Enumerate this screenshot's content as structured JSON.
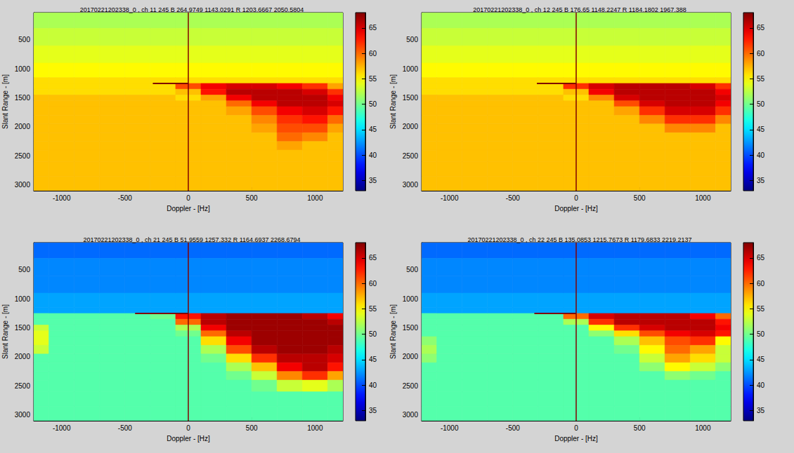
{
  "chart_data": [
    {
      "type": "heatmap",
      "title": "20170221202338_0 , ch 11 245 B 264.9749 1143.0291 R 1203.6667 2050.5804",
      "x_label": "Doppler - [Hz]",
      "y_label": "Slant Range - [m]",
      "xlim": [
        -1220,
        1220
      ],
      "xticks": [
        -1000,
        -500,
        0,
        500,
        1000
      ],
      "ylim": [
        30,
        3100
      ],
      "yticks": [
        500,
        1000,
        1500,
        2000,
        2500,
        3000
      ],
      "x_edges": [
        -1220,
        -1100,
        -900,
        -700,
        -500,
        -300,
        -100,
        100,
        300,
        500,
        700,
        900,
        1100,
        1220
      ],
      "y_edges": [
        30,
        300,
        600,
        900,
        1150,
        1250,
        1350,
        1450,
        1550,
        1650,
        1800,
        1950,
        2100,
        2250,
        2400,
        2600,
        2850,
        3100
      ],
      "z": [
        [
          52,
          52,
          52,
          52,
          52,
          52,
          52,
          52,
          52,
          52,
          52,
          52,
          52
        ],
        [
          53,
          53,
          53,
          53,
          53,
          53,
          53,
          53,
          53,
          53,
          53,
          53,
          53
        ],
        [
          54,
          54,
          54,
          54,
          54,
          54,
          54,
          54,
          54,
          54,
          54,
          54,
          54
        ],
        [
          55,
          55,
          55,
          55,
          55,
          55,
          55,
          55,
          55,
          55,
          55,
          55,
          55
        ],
        [
          56,
          56,
          56,
          56,
          56,
          56,
          56,
          56,
          56,
          56,
          56,
          56,
          56
        ],
        [
          56,
          56,
          56,
          56,
          56,
          56,
          61,
          64,
          65,
          65,
          64,
          62,
          58
        ],
        [
          56,
          56,
          56,
          56,
          56,
          56,
          57,
          63,
          66,
          66,
          66,
          65,
          62
        ],
        [
          57,
          57,
          57,
          57,
          57,
          57,
          56,
          58,
          64,
          66,
          66,
          66,
          64
        ],
        [
          57,
          57,
          57,
          57,
          57,
          57,
          57,
          57,
          60,
          64,
          66,
          66,
          65
        ],
        [
          57,
          57,
          57,
          57,
          57,
          57,
          57,
          57,
          58,
          61,
          64,
          65,
          63
        ],
        [
          57,
          57,
          57,
          57,
          57,
          57,
          57,
          57,
          57,
          59,
          62,
          63,
          60
        ],
        [
          57,
          57,
          57,
          57,
          57,
          57,
          57,
          57,
          57,
          58,
          61,
          61,
          58
        ],
        [
          57,
          57,
          57,
          57,
          57,
          57,
          57,
          57,
          57,
          57,
          60,
          59,
          57
        ],
        [
          57,
          57,
          57,
          57,
          57,
          57,
          57,
          57,
          57,
          57,
          58,
          57,
          57
        ],
        [
          57,
          57,
          57,
          57,
          57,
          57,
          57,
          57,
          57,
          57,
          57,
          57,
          57
        ],
        [
          57,
          57,
          57,
          57,
          57,
          57,
          57,
          57,
          57,
          57,
          57,
          57,
          57
        ],
        [
          57,
          57,
          57,
          57,
          57,
          57,
          57,
          57,
          57,
          57,
          57,
          57,
          57
        ]
      ],
      "colorbar": {
        "range": [
          33,
          68
        ],
        "ticks": [
          35,
          40,
          45,
          50,
          55,
          60,
          65
        ]
      },
      "zero_doppler_line": 0,
      "streak": {
        "doppler": [
          -280,
          0
        ],
        "range": 1250
      }
    },
    {
      "type": "heatmap",
      "title": "20170221202338_0 , ch 12 245 B 176.65 1148.2247 R 1184.1802 1967.388",
      "x_label": "Doppler - [Hz]",
      "y_label": "Slant Range - [m]",
      "xlim": [
        -1220,
        1220
      ],
      "xticks": [
        -1000,
        -500,
        0,
        500,
        1000
      ],
      "ylim": [
        30,
        3100
      ],
      "yticks": [
        500,
        1000,
        1500,
        2000,
        2500,
        3000
      ],
      "x_edges": [
        -1220,
        -1100,
        -900,
        -700,
        -500,
        -300,
        -100,
        100,
        300,
        500,
        700,
        900,
        1100,
        1220
      ],
      "y_edges": [
        30,
        300,
        600,
        900,
        1150,
        1250,
        1350,
        1450,
        1550,
        1650,
        1800,
        1950,
        2100,
        2250,
        2400,
        2600,
        2850,
        3100
      ],
      "z": [
        [
          52,
          52,
          52,
          52,
          52,
          52,
          52,
          52,
          52,
          52,
          52,
          52,
          52
        ],
        [
          53,
          53,
          53,
          53,
          53,
          53,
          53,
          53,
          53,
          53,
          53,
          53,
          53
        ],
        [
          54,
          54,
          54,
          54,
          54,
          54,
          54,
          54,
          54,
          54,
          54,
          54,
          54
        ],
        [
          55,
          55,
          55,
          55,
          55,
          55,
          55,
          55,
          55,
          55,
          55,
          55,
          55
        ],
        [
          56,
          56,
          56,
          56,
          56,
          56,
          56,
          56,
          56,
          56,
          56,
          56,
          56
        ],
        [
          56,
          56,
          56,
          56,
          56,
          56,
          62,
          65,
          66,
          66,
          66,
          65,
          62
        ],
        [
          56,
          56,
          56,
          56,
          56,
          56,
          57,
          64,
          66,
          66,
          66,
          66,
          64
        ],
        [
          57,
          57,
          57,
          57,
          57,
          57,
          56,
          59,
          65,
          66,
          66,
          66,
          65
        ],
        [
          57,
          57,
          57,
          57,
          57,
          57,
          57,
          57,
          61,
          65,
          66,
          66,
          64
        ],
        [
          57,
          57,
          57,
          57,
          57,
          57,
          57,
          57,
          58,
          62,
          65,
          65,
          62
        ],
        [
          57,
          57,
          57,
          57,
          57,
          57,
          57,
          57,
          57,
          59,
          62,
          62,
          59
        ],
        [
          57,
          57,
          57,
          57,
          57,
          57,
          57,
          57,
          57,
          57,
          59,
          59,
          57
        ],
        [
          57,
          57,
          57,
          57,
          57,
          57,
          57,
          57,
          57,
          57,
          57,
          57,
          57
        ],
        [
          57,
          57,
          57,
          57,
          57,
          57,
          57,
          57,
          57,
          57,
          57,
          57,
          57
        ],
        [
          57,
          57,
          57,
          57,
          57,
          57,
          57,
          57,
          57,
          57,
          57,
          57,
          57
        ],
        [
          57,
          57,
          57,
          57,
          57,
          57,
          57,
          57,
          57,
          57,
          57,
          57,
          57
        ],
        [
          57,
          57,
          57,
          57,
          57,
          57,
          57,
          57,
          57,
          57,
          57,
          57,
          57
        ]
      ],
      "colorbar": {
        "range": [
          33,
          68
        ],
        "ticks": [
          35,
          40,
          45,
          50,
          55,
          60,
          65
        ]
      },
      "zero_doppler_line": 0,
      "streak": {
        "doppler": [
          -310,
          0
        ],
        "range": 1250
      }
    },
    {
      "type": "heatmap",
      "title": "20170221202338_0 , ch 21 245 B 51.9559 1257.332 R 1164.6937 2268.6794",
      "x_label": "Doppler - [Hz]",
      "y_label": "Slant Range - [m]",
      "xlim": [
        -1220,
        1220
      ],
      "xticks": [
        -1000,
        -500,
        0,
        500,
        1000
      ],
      "ylim": [
        30,
        3100
      ],
      "yticks": [
        500,
        1000,
        1500,
        2000,
        2500,
        3000
      ],
      "x_edges": [
        -1220,
        -1100,
        -900,
        -700,
        -500,
        -300,
        -100,
        100,
        300,
        500,
        700,
        900,
        1100,
        1220
      ],
      "y_edges": [
        30,
        300,
        600,
        900,
        1150,
        1250,
        1350,
        1450,
        1550,
        1650,
        1800,
        1950,
        2100,
        2250,
        2400,
        2600,
        2850,
        3100
      ],
      "z": [
        [
          41,
          41,
          41,
          41,
          41,
          41,
          41,
          41,
          41,
          41,
          41,
          41,
          41
        ],
        [
          42,
          42,
          42,
          42,
          42,
          42,
          42,
          42,
          42,
          42,
          42,
          42,
          42
        ],
        [
          42,
          42,
          42,
          42,
          42,
          42,
          42,
          42,
          42,
          42,
          42,
          42,
          42
        ],
        [
          43,
          43,
          43,
          43,
          43,
          43,
          43,
          43,
          43,
          43,
          43,
          43,
          43
        ],
        [
          43,
          43,
          43,
          43,
          43,
          43,
          43,
          43,
          43,
          43,
          43,
          43,
          43
        ],
        [
          49,
          49,
          49,
          49,
          49,
          50,
          63,
          66,
          67,
          67,
          67,
          66,
          64
        ],
        [
          49,
          49,
          49,
          49,
          49,
          49,
          60,
          66,
          67,
          67,
          67,
          67,
          66
        ],
        [
          53,
          49,
          49,
          49,
          49,
          49,
          52,
          64,
          67,
          67,
          67,
          67,
          67
        ],
        [
          54,
          49,
          49,
          49,
          49,
          49,
          50,
          60,
          66,
          67,
          67,
          67,
          67
        ],
        [
          54,
          49,
          49,
          49,
          49,
          49,
          49,
          56,
          64,
          67,
          67,
          67,
          67
        ],
        [
          53,
          49,
          49,
          49,
          49,
          49,
          49,
          52,
          61,
          66,
          67,
          67,
          66
        ],
        [
          49,
          49,
          49,
          49,
          49,
          49,
          49,
          50,
          56,
          62,
          66,
          66,
          65
        ],
        [
          49,
          49,
          49,
          49,
          49,
          49,
          49,
          49,
          52,
          57,
          64,
          66,
          63
        ],
        [
          49,
          49,
          49,
          49,
          49,
          49,
          49,
          49,
          50,
          53,
          59,
          62,
          58
        ],
        [
          49,
          49,
          49,
          49,
          49,
          49,
          49,
          49,
          49,
          50,
          53,
          54,
          52
        ],
        [
          49,
          49,
          49,
          49,
          49,
          49,
          49,
          49,
          49,
          49,
          49,
          49,
          49
        ],
        [
          49,
          49,
          49,
          49,
          49,
          49,
          49,
          49,
          49,
          49,
          49,
          49,
          49
        ]
      ],
      "colorbar": {
        "range": [
          33,
          68
        ],
        "ticks": [
          35,
          40,
          45,
          50,
          55,
          60,
          65
        ]
      },
      "zero_doppler_line": 0,
      "streak": {
        "doppler": [
          -420,
          0
        ],
        "range": 1250
      }
    },
    {
      "type": "heatmap",
      "title": "20170221202338_0 , ch 22 245 B 135.0853 1215.7673 R 1179.6833 2219.2137",
      "x_label": "Doppler - [Hz]",
      "y_label": "Slant Range - [m]",
      "xlim": [
        -1220,
        1220
      ],
      "xticks": [
        -1000,
        -500,
        0,
        500,
        1000
      ],
      "ylim": [
        30,
        3100
      ],
      "yticks": [
        500,
        1000,
        1500,
        2000,
        2500,
        3000
      ],
      "x_edges": [
        -1220,
        -1100,
        -900,
        -700,
        -500,
        -300,
        -100,
        100,
        300,
        500,
        700,
        900,
        1100,
        1220
      ],
      "y_edges": [
        30,
        300,
        600,
        900,
        1150,
        1250,
        1350,
        1450,
        1550,
        1650,
        1800,
        1950,
        2100,
        2250,
        2400,
        2600,
        2850,
        3100
      ],
      "z": [
        [
          41,
          41,
          41,
          41,
          41,
          41,
          41,
          41,
          41,
          41,
          41,
          41,
          41
        ],
        [
          42,
          42,
          42,
          42,
          42,
          42,
          42,
          42,
          42,
          42,
          42,
          42,
          42
        ],
        [
          42,
          42,
          42,
          42,
          42,
          42,
          42,
          42,
          42,
          42,
          42,
          42,
          42
        ],
        [
          43,
          43,
          43,
          43,
          43,
          43,
          43,
          43,
          43,
          43,
          43,
          43,
          43
        ],
        [
          43,
          43,
          43,
          43,
          43,
          43,
          43,
          43,
          43,
          43,
          43,
          43,
          43
        ],
        [
          49,
          49,
          49,
          49,
          49,
          49,
          60,
          65,
          66,
          66,
          66,
          64,
          60
        ],
        [
          49,
          49,
          49,
          49,
          49,
          49,
          52,
          62,
          66,
          66,
          66,
          66,
          63
        ],
        [
          49,
          49,
          49,
          49,
          49,
          49,
          49,
          55,
          62,
          65,
          66,
          66,
          64
        ],
        [
          49,
          49,
          49,
          49,
          49,
          49,
          49,
          51,
          56,
          61,
          64,
          65,
          63
        ],
        [
          51,
          49,
          49,
          49,
          49,
          49,
          49,
          49,
          52,
          57,
          61,
          62,
          55
        ],
        [
          52,
          49,
          49,
          49,
          49,
          49,
          49,
          49,
          50,
          55,
          60,
          58,
          53
        ],
        [
          51,
          49,
          49,
          49,
          49,
          49,
          49,
          49,
          49,
          53,
          58,
          56,
          53
        ],
        [
          49,
          49,
          49,
          49,
          49,
          49,
          49,
          49,
          49,
          51,
          55,
          53,
          51
        ],
        [
          49,
          49,
          49,
          49,
          49,
          49,
          49,
          49,
          49,
          49,
          51,
          50,
          49
        ],
        [
          49,
          49,
          49,
          49,
          49,
          49,
          49,
          49,
          49,
          49,
          49,
          49,
          49
        ],
        [
          49,
          49,
          49,
          49,
          49,
          49,
          49,
          49,
          49,
          49,
          49,
          49,
          49
        ],
        [
          49,
          49,
          49,
          49,
          49,
          49,
          49,
          49,
          49,
          49,
          49,
          49,
          49
        ]
      ],
      "colorbar": {
        "range": [
          33,
          68
        ],
        "ticks": [
          35,
          40,
          45,
          50,
          55,
          60,
          65
        ]
      },
      "zero_doppler_line": 0,
      "streak": {
        "doppler": [
          -330,
          0
        ],
        "range": 1250
      }
    }
  ]
}
